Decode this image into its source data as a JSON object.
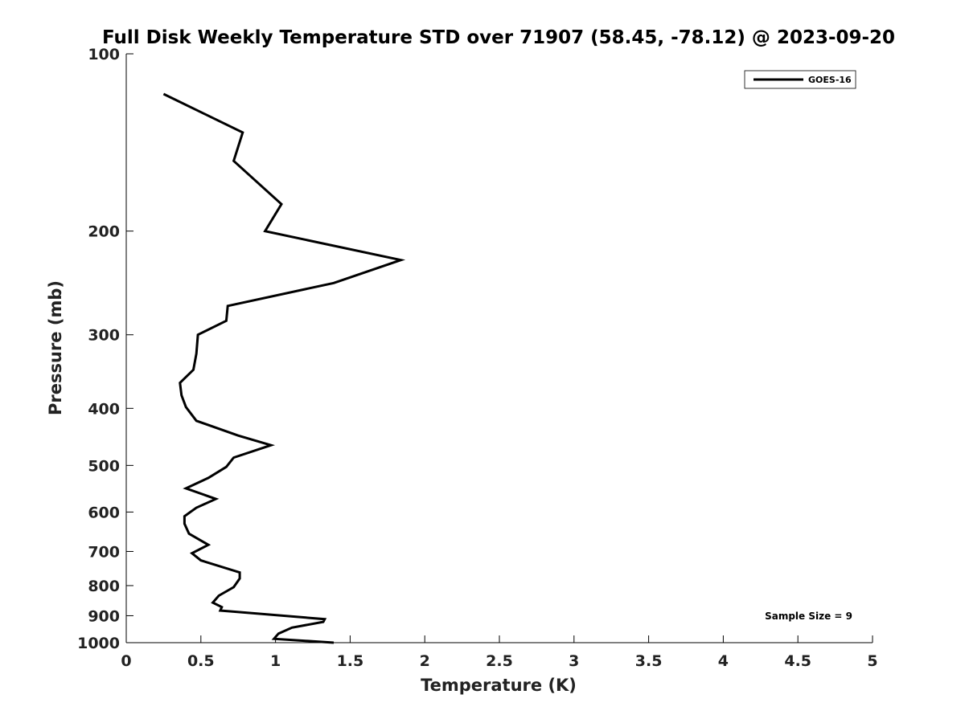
{
  "chart_data": {
    "type": "line",
    "title": "Full Disk Weekly Temperature STD over 71907 (58.45, -78.12) @ 2023-09-20",
    "xlabel": "Temperature (K)",
    "ylabel": "Pressure (mb)",
    "xlim": [
      0,
      5
    ],
    "ylim": [
      100,
      1000
    ],
    "y_scale": "log",
    "y_reversed": true,
    "x_ticks": [
      0,
      0.5,
      1,
      1.5,
      2,
      2.5,
      3,
      3.5,
      4,
      4.5,
      5
    ],
    "x_tick_labels": [
      "0",
      "0.5",
      "1",
      "1.5",
      "2",
      "2.5",
      "3",
      "3.5",
      "4",
      "4.5",
      "5"
    ],
    "y_ticks": [
      100,
      200,
      300,
      400,
      500,
      600,
      700,
      800,
      900,
      1000
    ],
    "y_tick_labels": [
      "100",
      "200",
      "300",
      "400",
      "500",
      "600",
      "700",
      "800",
      "900",
      "1000"
    ],
    "grid": false,
    "legend_position": "top-right",
    "series": [
      {
        "name": "GOES-16",
        "color": "#000000",
        "x": [
          0.25,
          0.78,
          0.72,
          1.04,
          0.93,
          1.84,
          1.39,
          0.68,
          0.67,
          0.48,
          0.47,
          0.45,
          0.36,
          0.37,
          0.4,
          0.47,
          0.75,
          0.97,
          0.72,
          0.67,
          0.55,
          0.4,
          0.6,
          0.47,
          0.39,
          0.39,
          0.42,
          0.55,
          0.44,
          0.5,
          0.76,
          0.76,
          0.72,
          0.62,
          0.58,
          0.64,
          0.63,
          1.33,
          1.32,
          1.11,
          1.02,
          0.99,
          1.39
        ],
        "y": [
          117,
          136,
          152,
          180,
          200,
          224,
          245,
          268,
          284,
          300,
          323,
          344,
          362,
          380,
          398,
          420,
          445,
          462,
          485,
          503,
          525,
          547,
          570,
          590,
          610,
          628,
          653,
          682,
          705,
          725,
          760,
          778,
          805,
          832,
          855,
          870,
          882,
          912,
          922,
          943,
          965,
          985,
          1000
        ]
      }
    ],
    "annotations": [
      "Sample Size = 9"
    ]
  }
}
